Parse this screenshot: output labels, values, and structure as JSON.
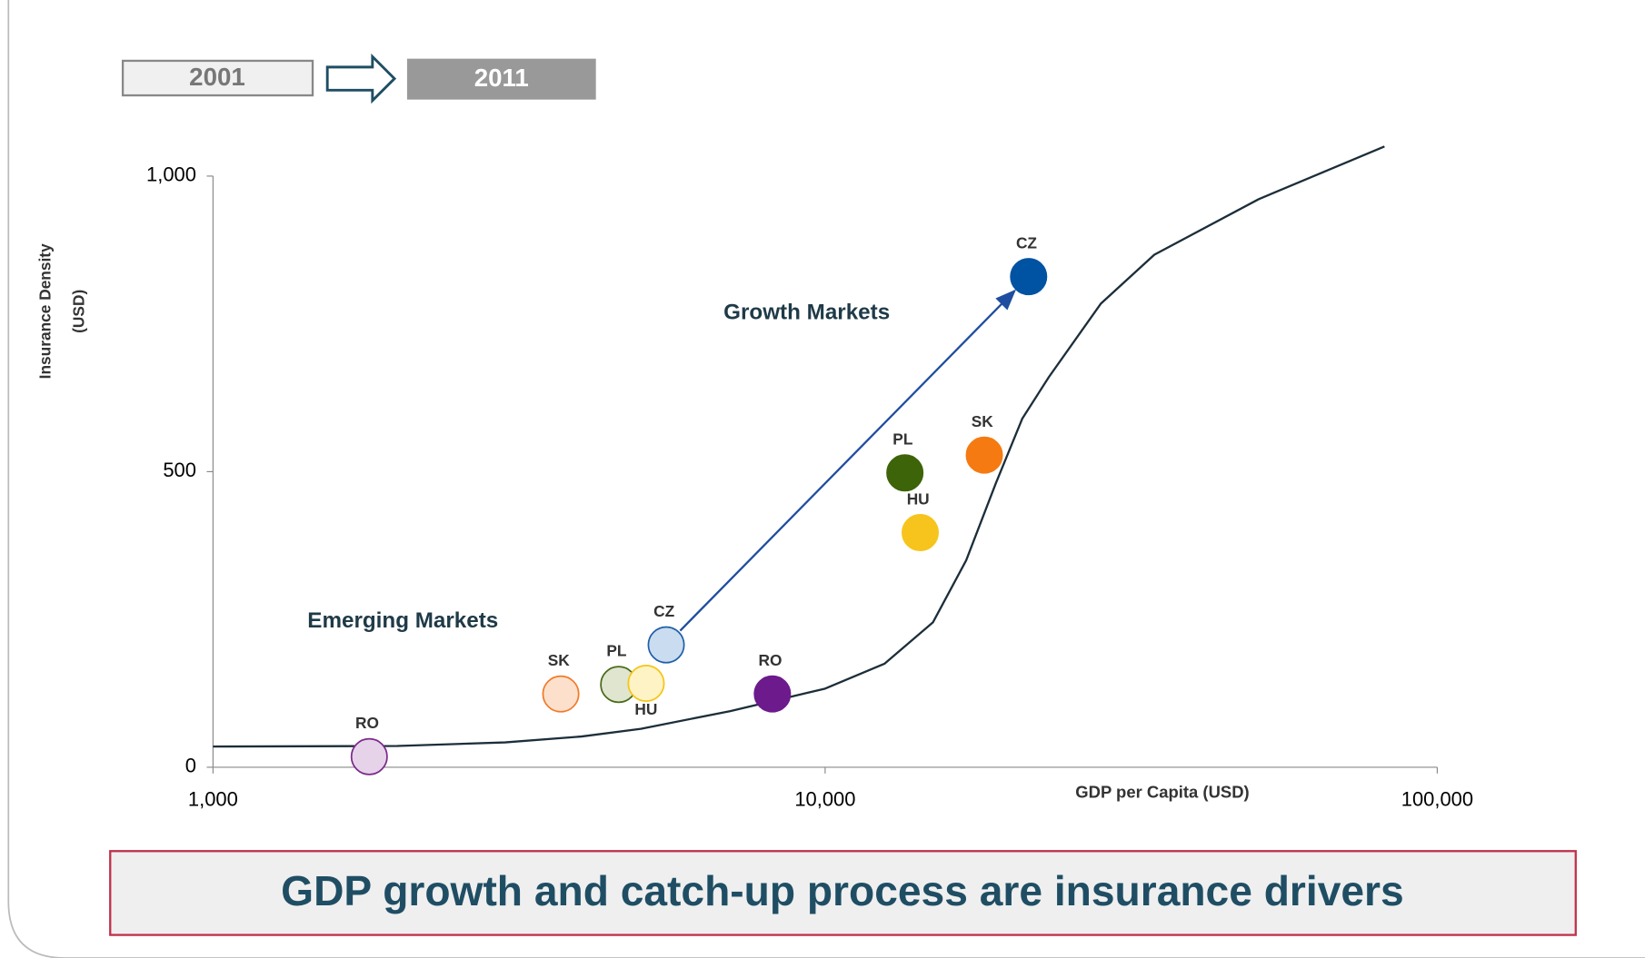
{
  "chart_data": {
    "type": "scatter",
    "xlabel": "GDP per Capita (USD)",
    "ylabel": [
      "Insurance Density",
      "(USD)"
    ],
    "annotations": [
      "Growth Markets",
      "Emerging Markets"
    ],
    "banner": "GDP growth and catch-up process are insurance drivers",
    "xscale": "log",
    "xlim": [
      1000,
      100000
    ],
    "ylim": [
      0,
      1000
    ],
    "xticks": [
      {
        "value": 1000,
        "label": "1,000"
      },
      {
        "value": 10000,
        "label": "10,000"
      },
      {
        "value": 100000,
        "label": "100,000"
      }
    ],
    "yticks": [
      0,
      500,
      {
        "value": 1000,
        "label": "1,000"
      }
    ],
    "series": [
      {
        "name": "2001",
        "points": [
          {
            "label": "RO",
            "x": 1800,
            "y": 18,
            "color": "#7b2a8a",
            "fill": "#e6d3ea"
          },
          {
            "label": "SK",
            "x": 3700,
            "y": 124,
            "color": "#f07a2a",
            "fill": "#fde0cc"
          },
          {
            "label": "PL",
            "x": 4600,
            "y": 140,
            "color": "#4a6a1a",
            "fill": "#dfe5cf"
          },
          {
            "label": "HU",
            "x": 5100,
            "y": 142,
            "color": "#f5c518",
            "fill": "#fdf3c4"
          },
          {
            "label": "CZ",
            "x": 5500,
            "y": 207,
            "color": "#1f5fa8",
            "fill": "#cadcef"
          }
        ]
      },
      {
        "name": "2011",
        "points": [
          {
            "label": "RO",
            "x": 8200,
            "y": 124,
            "color": "#6c1a8c"
          },
          {
            "label": "PL",
            "x": 13500,
            "y": 498,
            "color": "#3d6408"
          },
          {
            "label": "HU",
            "x": 14300,
            "y": 397,
            "color": "#f6c41c"
          },
          {
            "label": "SK",
            "x": 18200,
            "y": 528,
            "color": "#f57a12"
          },
          {
            "label": "CZ",
            "x": 21500,
            "y": 830,
            "color": "#0052a2"
          }
        ]
      }
    ],
    "trend": {
      "color": "#1c2e3a",
      "x": [
        1000,
        2000,
        3000,
        4000,
        5000,
        7000,
        10000,
        12500,
        15000,
        17000,
        19000,
        21000,
        23200,
        28200,
        34500,
        51100,
        82000
      ],
      "y": [
        35,
        36,
        42,
        52,
        65,
        95,
        133,
        175,
        245,
        350,
        480,
        590,
        660,
        784,
        867,
        961,
        1050
      ]
    }
  }
}
